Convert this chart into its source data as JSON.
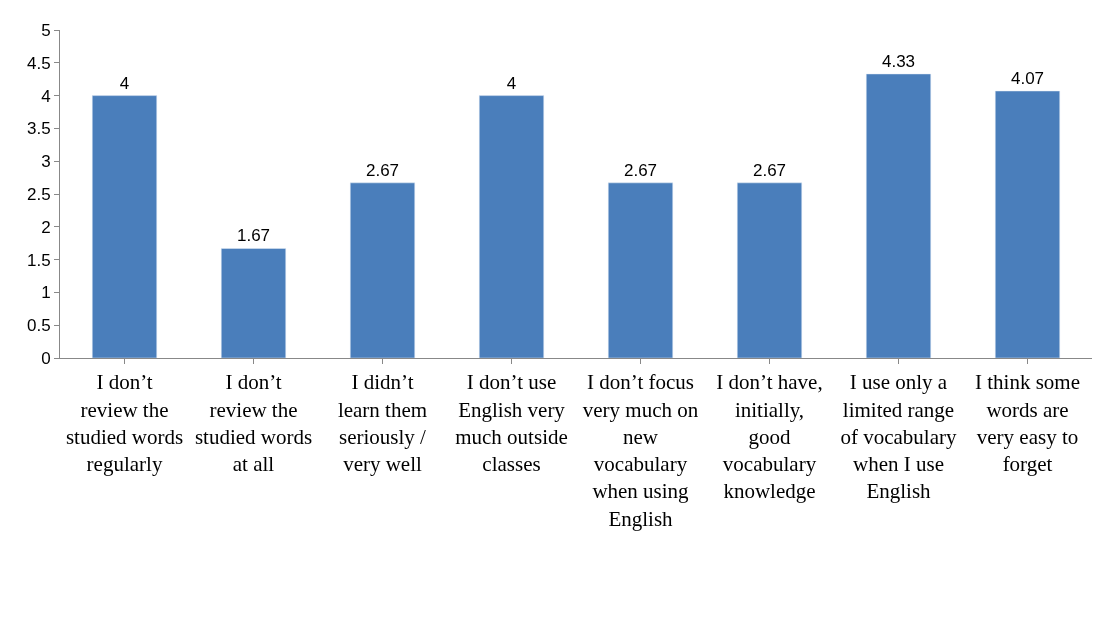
{
  "chart_data": {
    "type": "bar",
    "categories": [
      "I don’t review the studied words regularly",
      "I don’t review the studied words at all",
      "I didn’t learn them seriously / very well",
      "I don’t use English very much outside classes",
      "I don’t focus very much on new vocabulary when using English",
      "I don’t have, initially, good vocabulary knowledge",
      "I use only a limited range of vocabulary when I use English",
      "I think some words are very easy to forget"
    ],
    "values": [
      4,
      1.67,
      2.67,
      4,
      2.67,
      2.67,
      4.33,
      4.07
    ],
    "color": "#4a7ebb",
    "ylim": [
      0,
      5
    ],
    "yticks": [
      0,
      0.5,
      1,
      1.5,
      2,
      2.5,
      3,
      3.5,
      4,
      4.5,
      5
    ],
    "data_labels": true
  }
}
